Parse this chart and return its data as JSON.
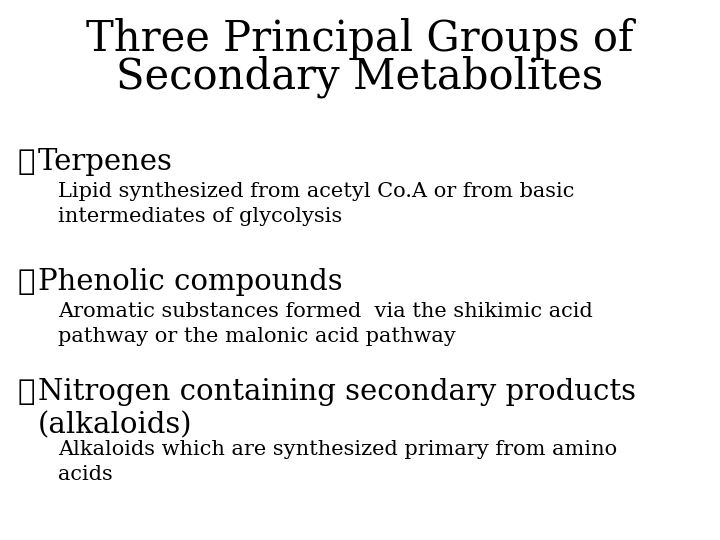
{
  "title_line1": "Three Principal Groups of",
  "title_line2": "Secondary Metabolites",
  "title_fontsize": 30,
  "body_font": "DejaVu Serif",
  "background_color": "#ffffff",
  "text_color": "#000000",
  "bullet_char": "✓",
  "bullets": [
    {
      "heading": "Terpenes",
      "heading_fontsize": 21,
      "body": "Lipid synthesized from acetyl Co.A or from basic\nintermediates of glycolysis",
      "body_fontsize": 15
    },
    {
      "heading": "Phenolic compounds",
      "heading_fontsize": 21,
      "body": "Aromatic substances formed  via the shikimic acid\npathway or the malonic acid pathway",
      "body_fontsize": 15
    },
    {
      "heading": "Nitrogen containing secondary products\n(alkaloids)",
      "heading_fontsize": 21,
      "body": "Alkaloids which are synthesized primary from amino\nacids",
      "body_fontsize": 15
    }
  ],
  "fig_width": 7.2,
  "fig_height": 5.4,
  "dpi": 100
}
